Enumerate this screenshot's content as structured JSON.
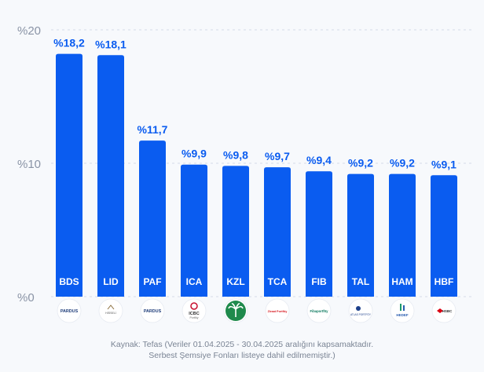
{
  "chart_data": {
    "type": "bar",
    "categories": [
      "BDS",
      "LID",
      "PAF",
      "ICA",
      "KZL",
      "TCA",
      "FIB",
      "TAL",
      "HAM",
      "HBF"
    ],
    "values": [
      18.2,
      18.1,
      11.7,
      9.9,
      9.8,
      9.7,
      9.4,
      9.2,
      9.2,
      9.1
    ],
    "value_labels": [
      "%18,2",
      "%18,1",
      "%11,7",
      "%9,9",
      "%9,8",
      "%9,7",
      "%9,4",
      "%9,2",
      "%9,2",
      "%9,1"
    ],
    "y_ticks": [
      {
        "value": 0,
        "label": "%0"
      },
      {
        "value": 10,
        "label": "%10"
      },
      {
        "value": 20,
        "label": "%20"
      }
    ],
    "ylim": [
      0,
      20
    ],
    "grid": true,
    "logos": [
      {
        "icon": "pardus-logo",
        "text": "PARDUS"
      },
      {
        "icon": "hisseli-logo",
        "text": "HİSSELİ"
      },
      {
        "icon": "pardus-logo",
        "text": "PARDUS"
      },
      {
        "icon": "icbc-logo",
        "text": "ICBC Portföy"
      },
      {
        "icon": "kuveyt-turk-logo",
        "text": ""
      },
      {
        "icon": "ziraat-logo",
        "text": "Ziraat Portföy"
      },
      {
        "icon": "fiba-logo",
        "text": "Fibaportföy"
      },
      {
        "icon": "atlas-logo",
        "text": "ATLAS PORTFÖY"
      },
      {
        "icon": "hedef-logo",
        "text": "HEDEF"
      },
      {
        "icon": "hsbc-logo",
        "text": "HSBC"
      }
    ],
    "colors": {
      "bar": "#0a5cf0",
      "value_label": "#0a5cf0",
      "axis_text": "#8a94a6",
      "grid": "#d5dce8"
    }
  },
  "source": {
    "line1": "Kaynak: Tefas (Veriler 01.04.2025 - 30.04.2025 aralığını kapsamaktadır.",
    "line2": "Serbest Şemsiye Fonları listeye dahil edilmemiştir.)"
  }
}
